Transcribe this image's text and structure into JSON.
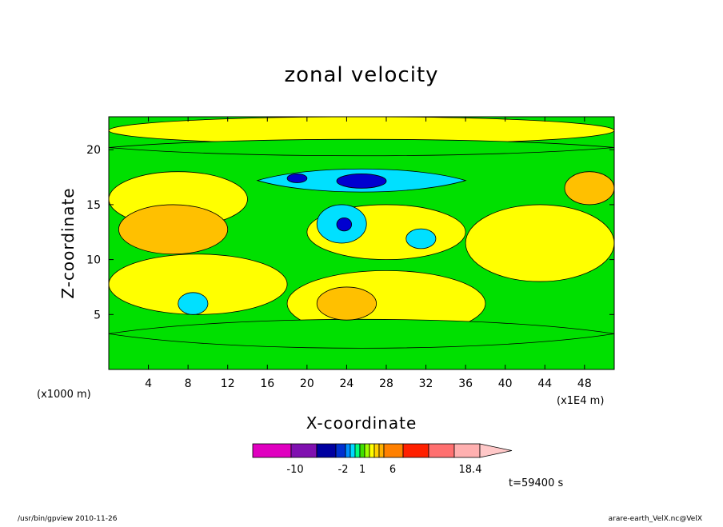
{
  "chart_data": {
    "type": "heatmap",
    "title": "zonal velocity",
    "xlabel": "X-coordinate",
    "ylabel": "Z-coordinate",
    "x_unit": "(x1E4 m)",
    "y_unit": "(x1000 m)",
    "xlim": [
      0,
      51
    ],
    "ylim": [
      0,
      23
    ],
    "x_ticks": [
      4,
      8,
      12,
      16,
      20,
      24,
      28,
      32,
      36,
      40,
      44,
      48
    ],
    "y_ticks": [
      5,
      10,
      15,
      20
    ],
    "field": "u",
    "features": [
      {
        "name": "top band",
        "x": [
          0,
          51
        ],
        "z": [
          19.2,
          21.2
        ],
        "value": -1,
        "kind": "band"
      },
      {
        "name": "lower band",
        "x": [
          0,
          51
        ],
        "z": [
          1.5,
          5.0
        ],
        "value": 0,
        "kind": "band"
      },
      {
        "name": "shear band",
        "x": [
          15,
          36
        ],
        "z": [
          15.8,
          18.6
        ],
        "value": -3,
        "kind": "band"
      },
      {
        "name": "jet core",
        "x": [
          23,
          28
        ],
        "z": [
          16.5,
          17.8
        ],
        "value": -8,
        "kind": "core"
      },
      {
        "name": "left core",
        "x": [
          18,
          20
        ],
        "z": [
          17.0,
          17.8
        ],
        "value": -8,
        "kind": "core"
      },
      {
        "name": "mid cyclone",
        "x": [
          21,
          26
        ],
        "z": [
          11.5,
          15.0
        ],
        "value": -4,
        "kind": "cell"
      },
      {
        "name": "mid core",
        "x": [
          23,
          24.5
        ],
        "z": [
          12.6,
          13.8
        ],
        "value": -8,
        "kind": "core"
      },
      {
        "name": "left warm",
        "x": [
          1,
          12
        ],
        "z": [
          10.5,
          15.0
        ],
        "value": 4,
        "kind": "cell"
      },
      {
        "name": "low warm",
        "x": [
          21,
          27
        ],
        "z": [
          4.5,
          7.5
        ],
        "value": 4,
        "kind": "cell"
      },
      {
        "name": "right warm",
        "x": [
          46,
          51
        ],
        "z": [
          15.0,
          18.0
        ],
        "value": 4,
        "kind": "cell"
      },
      {
        "name": "cold cell right",
        "x": [
          30,
          33
        ],
        "z": [
          11.0,
          12.8
        ],
        "value": -3,
        "kind": "cell"
      },
      {
        "name": "cold cell low",
        "x": [
          7,
          10
        ],
        "z": [
          5.0,
          7.0
        ],
        "value": -3,
        "kind": "cell"
      }
    ],
    "grid": false,
    "colorbar": {
      "colors": [
        "#e000c0",
        "#8010b0",
        "#0000a0",
        "#0030d0",
        "#0090ff",
        "#00d8ff",
        "#00ff80",
        "#40e000",
        "#a0ff00",
        "#ffff00",
        "#ffd000",
        "#ffb000",
        "#ff8000",
        "#ff2000",
        "#ff7070",
        "#ffb0b0",
        "#ffc8c8"
      ],
      "labels": [
        "-10",
        "-2",
        "1",
        "6",
        "18.4"
      ],
      "orientation": "horizontal"
    },
    "time_label": "t=59400 s"
  },
  "footer": {
    "left": "/usr/bin/gpview  2010-11-26",
    "right": "arare-earth_VelX.nc@VelX"
  },
  "colors": {
    "green": "#00e000",
    "yellow": "#ffff00",
    "orange": "#ffc000",
    "cyan": "#00e0ff",
    "blue": "#0000d0"
  }
}
